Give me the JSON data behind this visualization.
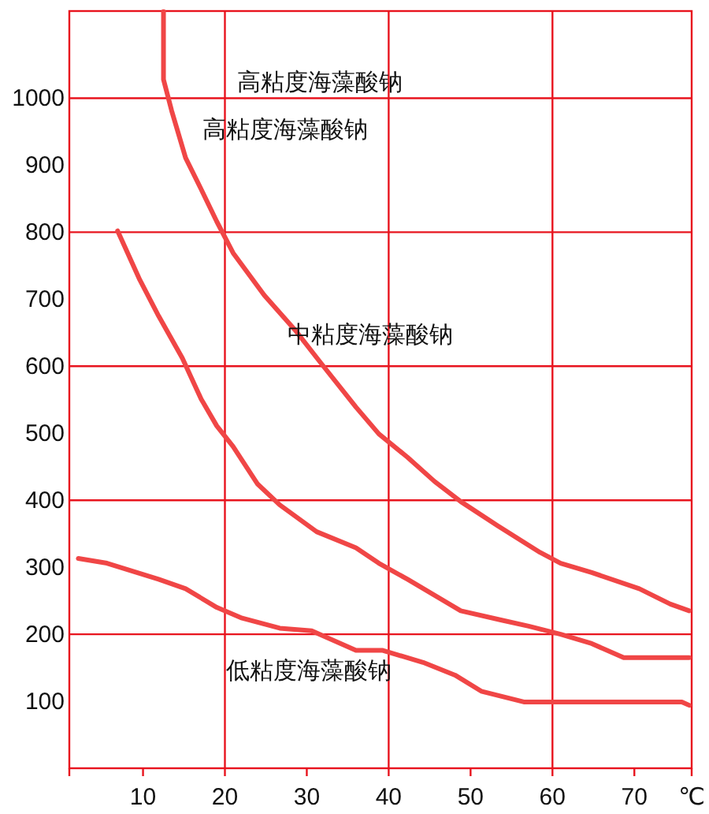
{
  "chart_data": {
    "type": "line",
    "xlim": [
      1,
      77
    ],
    "ylim": [
      0,
      1130
    ],
    "xticks": [
      10,
      20,
      30,
      40,
      50,
      60,
      70,
      {
        "value": 77,
        "label": "℃"
      }
    ],
    "yticks": [
      100,
      200,
      300,
      400,
      500,
      600,
      700,
      800,
      900,
      1000
    ],
    "ref_lines": [
      {
        "axis": "x",
        "value": 20,
        "color": "#e8141e"
      },
      {
        "axis": "x",
        "value": 40,
        "color": "#e8141e"
      },
      {
        "axis": "x",
        "value": 60,
        "color": "#e8141e"
      },
      {
        "axis": "y",
        "value": 200,
        "color": "#e8141e"
      },
      {
        "axis": "y",
        "value": 400,
        "color": "#e8141e"
      },
      {
        "axis": "y",
        "value": 600,
        "color": "#e8141e"
      },
      {
        "axis": "y",
        "value": 800,
        "color": "#e8141e"
      },
      {
        "axis": "y",
        "value": 1000,
        "color": "#e8141e"
      }
    ],
    "series": [
      {
        "color": "#f04646",
        "x": [
          12.5,
          12.5,
          13.5,
          15.2,
          17.1,
          19.0,
          21.0,
          24.8,
          28.7,
          31.7,
          36.0,
          38.8,
          42.3,
          45.6,
          48.8,
          53.3,
          58.5,
          61.0,
          64.8,
          70.6,
          74.4,
          76.7
        ],
        "values": [
          1129,
          1028,
          981,
          911,
          864,
          816,
          769,
          706,
          652,
          605,
          539,
          499,
          464,
          428,
          398,
          362,
          322,
          306,
          292,
          268,
          245,
          235
        ]
      },
      {
        "color": "#f04646",
        "x": [
          6.9,
          9.6,
          11.9,
          14.8,
          17.1,
          19.0,
          21.0,
          24.0,
          26.7,
          31.2,
          36.0,
          38.8,
          42.3,
          48.8,
          53.8,
          57.1,
          61.0,
          64.8,
          68.7,
          76.7
        ],
        "values": [
          802,
          729,
          675,
          612,
          551,
          511,
          480,
          424,
          393,
          353,
          329,
          306,
          282,
          235,
          221,
          212,
          200,
          186,
          165,
          165
        ]
      },
      {
        "color": "#f04646",
        "x": [
          2.1,
          5.6,
          11.9,
          15.2,
          19.0,
          22.1,
          26.7,
          30.6,
          36.0,
          39.2,
          44.2,
          48.1,
          51.3,
          56.5,
          75.8,
          76.7
        ],
        "values": [
          313,
          306,
          282,
          268,
          240,
          224,
          209,
          205,
          176,
          176,
          158,
          139,
          115,
          99,
          99,
          94
        ]
      }
    ],
    "annotations": [
      "高粘度海藻酸钠",
      "高粘度海藻酸钠",
      "中粘度海藻酸钠",
      "低粘度海藻酸钠"
    ]
  }
}
